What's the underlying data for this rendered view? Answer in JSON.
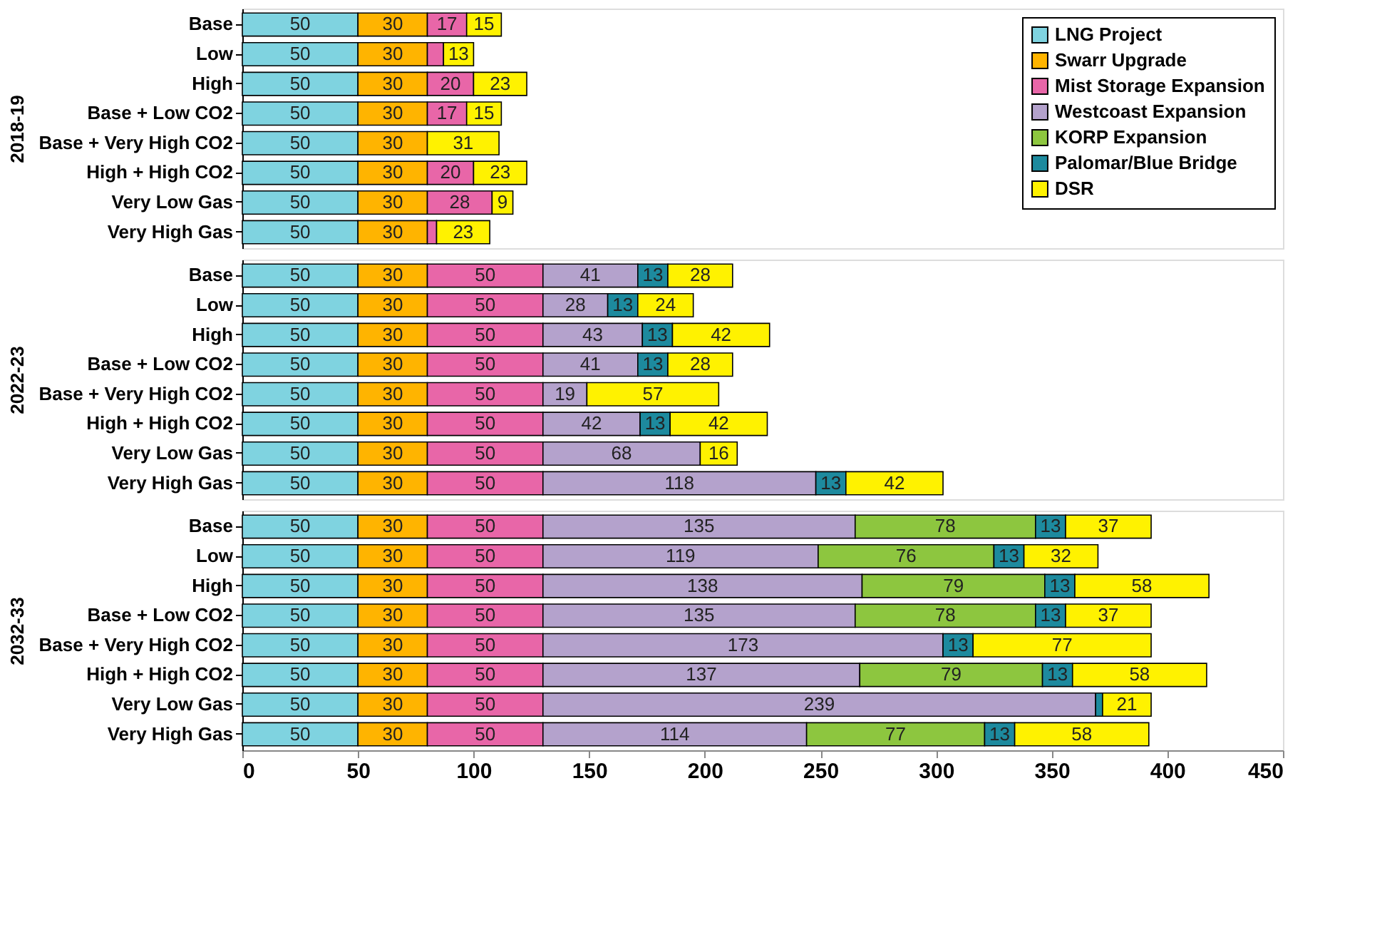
{
  "chart_data": [
    {
      "type": "bar",
      "orientation": "horizontal",
      "stacked": true,
      "ylabel": "2018-19",
      "categories": [
        "Base",
        "Low",
        "High",
        "Base + Low CO2",
        "Base + Very High CO2",
        "High + High CO2",
        "Very Low Gas",
        "Very High Gas"
      ],
      "xlim": [
        0,
        450
      ],
      "xticks": [
        0,
        50,
        100,
        150,
        200,
        250,
        300,
        350,
        400,
        450
      ],
      "tick_labels": "y",
      "grid": false,
      "legend": "top right",
      "series": [
        {
          "name": "LNG Project",
          "color": "#7fd3e0",
          "values": [
            50,
            50,
            50,
            50,
            50,
            50,
            50,
            50
          ],
          "value_labels": [
            "50",
            "50",
            "50",
            "50",
            "50",
            "50",
            "50",
            "50"
          ]
        },
        {
          "name": "Swarr Upgrade",
          "color": "#ffb400",
          "values": [
            30,
            30,
            30,
            30,
            30,
            30,
            30,
            30
          ],
          "value_labels": [
            "30",
            "30",
            "30",
            "30",
            "30",
            "30",
            "30",
            "30"
          ]
        },
        {
          "name": "Mist Storage Expansion",
          "color": "#e866a8",
          "values": [
            17,
            7,
            20,
            17,
            null,
            20,
            28,
            4
          ],
          "value_labels": [
            "17",
            null,
            "20",
            "17",
            null,
            "20",
            "28",
            null
          ]
        },
        {
          "name": "Westcoast Expansion",
          "color": "#b4a2cc",
          "values": [
            null,
            null,
            null,
            null,
            null,
            null,
            null,
            null
          ],
          "value_labels": [
            null,
            null,
            null,
            null,
            null,
            null,
            null,
            null
          ]
        },
        {
          "name": "KORP Expansion",
          "color": "#8dc63f",
          "values": [
            null,
            null,
            null,
            null,
            null,
            null,
            null,
            null
          ],
          "value_labels": [
            null,
            null,
            null,
            null,
            null,
            null,
            null,
            null
          ]
        },
        {
          "name": "Palomar/Blue Bridge",
          "color": "#1d8a9e",
          "values": [
            null,
            null,
            null,
            null,
            null,
            null,
            null,
            null
          ],
          "value_labels": [
            null,
            null,
            null,
            null,
            null,
            null,
            null,
            null
          ]
        },
        {
          "name": "DSR",
          "color": "#fff200",
          "values": [
            15,
            13,
            23,
            15,
            31,
            23,
            9,
            23
          ],
          "value_labels": [
            "15",
            "13",
            "23",
            "15",
            "31",
            "23",
            "9",
            "23"
          ]
        }
      ]
    },
    {
      "type": "bar",
      "orientation": "horizontal",
      "stacked": true,
      "ylabel": "2022-23",
      "categories": [
        "Base",
        "Low",
        "High",
        "Base + Low CO2",
        "Base + Very High CO2",
        "High + High CO2",
        "Very Low Gas",
        "Very High Gas"
      ],
      "xlim": [
        0,
        450
      ],
      "xticks": [
        0,
        50,
        100,
        150,
        200,
        250,
        300,
        350,
        400,
        450
      ],
      "tick_labels": "y",
      "grid": false,
      "series": [
        {
          "color": "#7fd3e0",
          "values": [
            50,
            50,
            50,
            50,
            50,
            50,
            50,
            50
          ],
          "value_labels": [
            "50",
            "50",
            "50",
            "50",
            "50",
            "50",
            "50",
            "50"
          ]
        },
        {
          "color": "#ffb400",
          "values": [
            30,
            30,
            30,
            30,
            30,
            30,
            30,
            30
          ],
          "value_labels": [
            "30",
            "30",
            "30",
            "30",
            "30",
            "30",
            "30",
            "30"
          ]
        },
        {
          "color": "#e866a8",
          "values": [
            50,
            50,
            50,
            50,
            50,
            50,
            50,
            50
          ],
          "value_labels": [
            "50",
            "50",
            "50",
            "50",
            "50",
            "50",
            "50",
            "50"
          ]
        },
        {
          "color": "#b4a2cc",
          "values": [
            41,
            28,
            43,
            41,
            19,
            42,
            68,
            118
          ],
          "value_labels": [
            "41",
            "28",
            "43",
            "41",
            "19",
            "42",
            "68",
            "118"
          ]
        },
        {
          "color": "#8dc63f",
          "values": [
            null,
            null,
            null,
            null,
            null,
            null,
            null,
            null
          ],
          "value_labels": [
            null,
            null,
            null,
            null,
            null,
            null,
            null,
            null
          ]
        },
        {
          "color": "#1d8a9e",
          "values": [
            13,
            13,
            13,
            13,
            null,
            13,
            null,
            13
          ],
          "value_labels": [
            "13",
            "13",
            "13",
            "13",
            null,
            "13",
            null,
            "13"
          ]
        },
        {
          "color": "#fff200",
          "values": [
            28,
            24,
            42,
            28,
            57,
            42,
            16,
            42
          ],
          "value_labels": [
            "28",
            "24",
            "42",
            "28",
            "57",
            "42",
            "16",
            "42"
          ]
        }
      ]
    },
    {
      "type": "bar",
      "orientation": "horizontal",
      "stacked": true,
      "ylabel": "2032-33",
      "categories": [
        "Base",
        "Low",
        "High",
        "Base + Low CO2",
        "Base + Very High CO2",
        "High + High CO2",
        "Very Low Gas",
        "Very High Gas"
      ],
      "xlim": [
        0,
        450
      ],
      "xticks": [
        0,
        50,
        100,
        150,
        200,
        250,
        300,
        350,
        400,
        450
      ],
      "grid": false,
      "series": [
        {
          "color": "#7fd3e0",
          "values": [
            50,
            50,
            50,
            50,
            50,
            50,
            50,
            50
          ],
          "value_labels": [
            "50",
            "50",
            "50",
            "50",
            "50",
            "50",
            "50",
            "50"
          ]
        },
        {
          "color": "#ffb400",
          "values": [
            30,
            30,
            30,
            30,
            30,
            30,
            30,
            30
          ],
          "value_labels": [
            "30",
            "30",
            "30",
            "30",
            "30",
            "30",
            "30",
            "30"
          ]
        },
        {
          "color": "#e866a8",
          "values": [
            50,
            50,
            50,
            50,
            50,
            50,
            50,
            50
          ],
          "value_labels": [
            "50",
            "50",
            "50",
            "50",
            "50",
            "50",
            "50",
            "50"
          ]
        },
        {
          "color": "#b4a2cc",
          "values": [
            135,
            119,
            138,
            135,
            173,
            137,
            239,
            114
          ],
          "value_labels": [
            "135",
            "119",
            "138",
            "135",
            "173",
            "137",
            "239",
            "114"
          ]
        },
        {
          "color": "#8dc63f",
          "values": [
            78,
            76,
            79,
            78,
            null,
            79,
            null,
            77
          ],
          "value_labels": [
            "78",
            "76",
            "79",
            "78",
            null,
            "79",
            null,
            "77"
          ]
        },
        {
          "color": "#1d8a9e",
          "values": [
            13,
            13,
            13,
            13,
            13,
            13,
            3,
            13
          ],
          "value_labels": [
            "13",
            "13",
            "13",
            "13",
            "13",
            "13",
            null,
            "13"
          ]
        },
        {
          "color": "#fff200",
          "values": [
            37,
            32,
            58,
            37,
            77,
            58,
            21,
            58
          ],
          "value_labels": [
            "37",
            "32",
            "58",
            "37",
            "77",
            "58",
            "21",
            "58"
          ]
        }
      ]
    }
  ]
}
